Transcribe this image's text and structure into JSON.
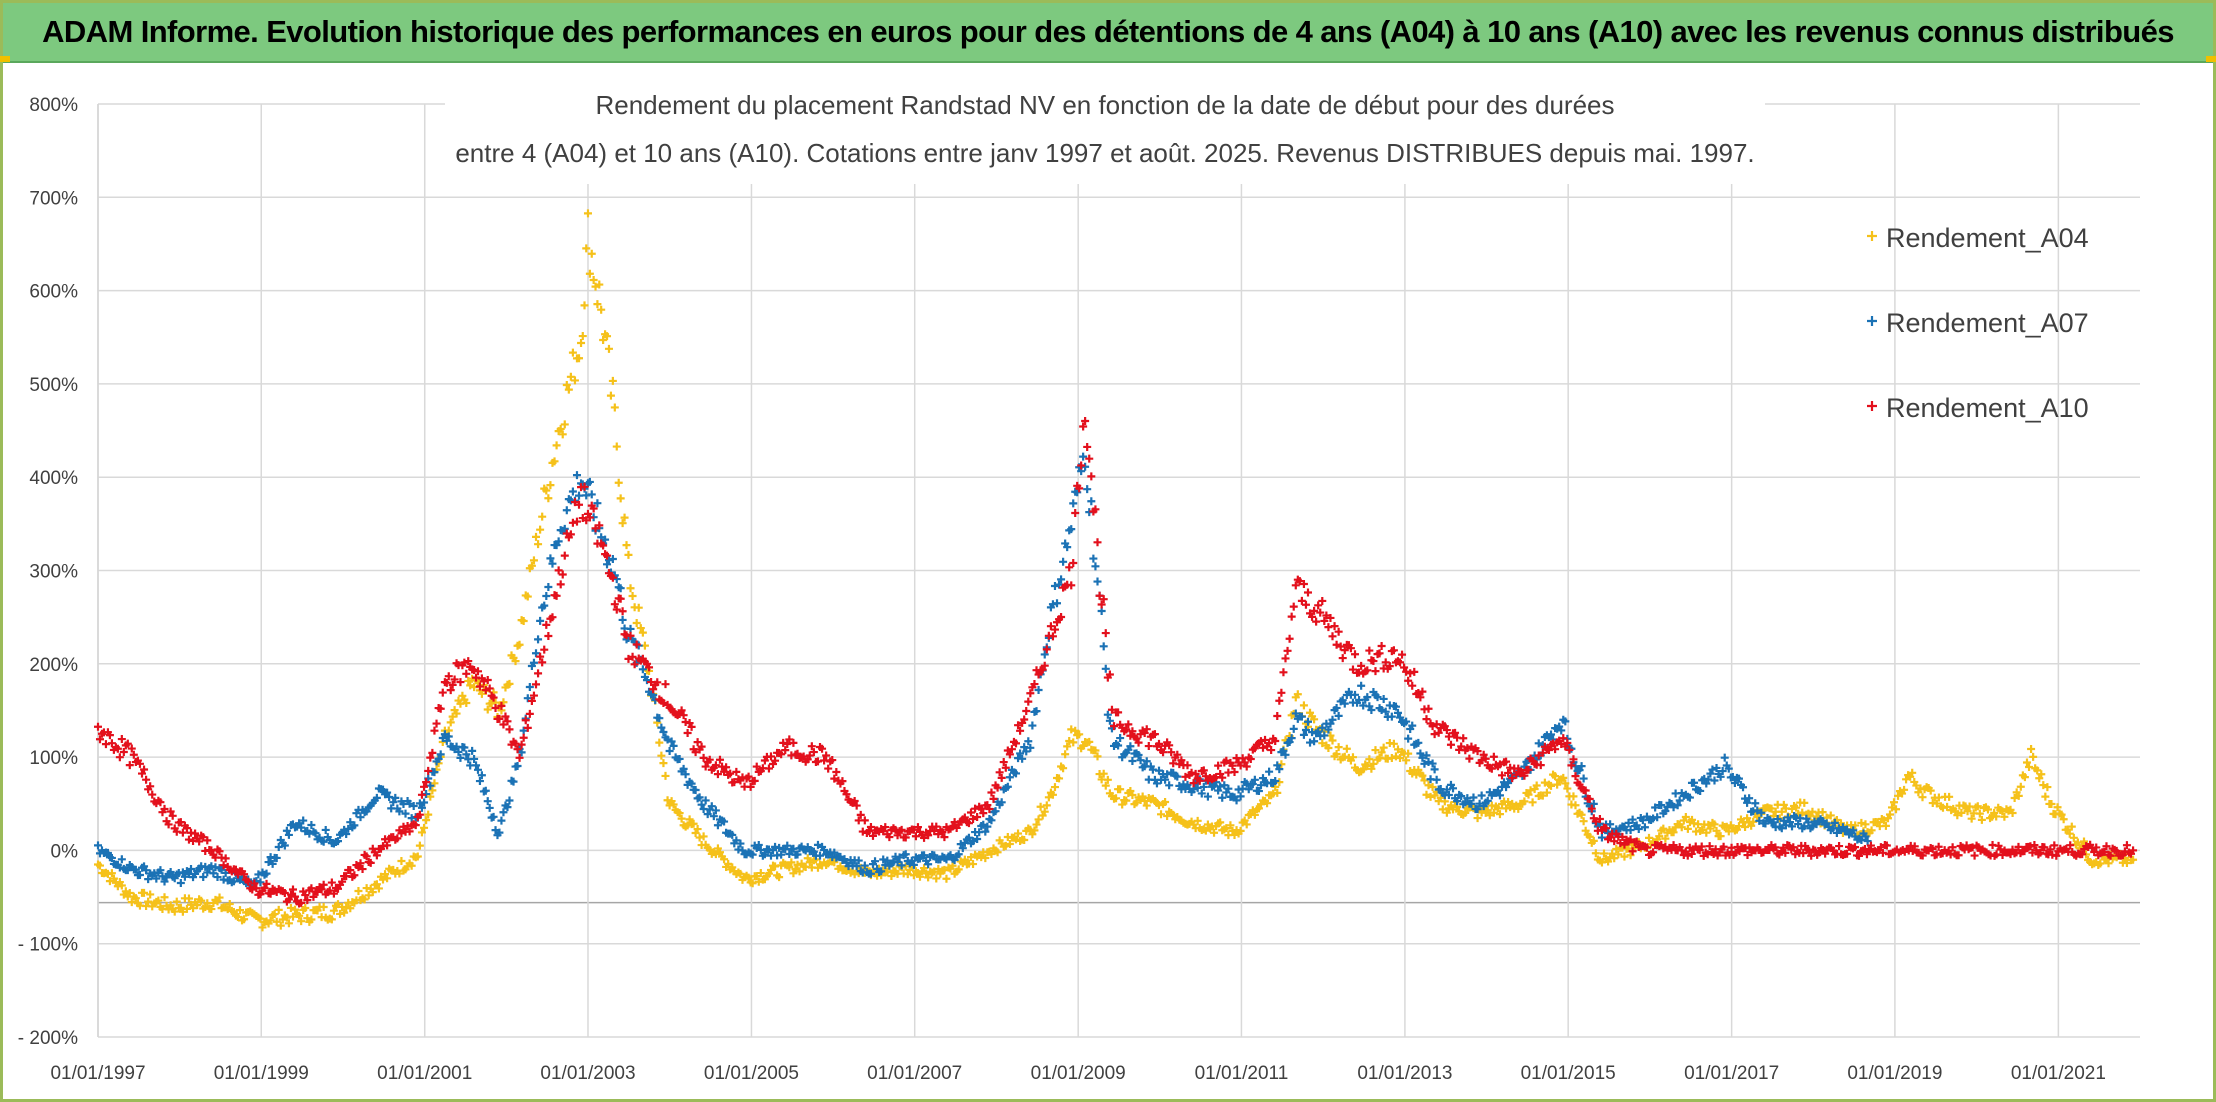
{
  "header": {
    "title": "ADAM Informe. Evolution historique des performances en euros pour des détentions de 4 ans (A04) à 10 ans (A10) avec les revenus connus distribués"
  },
  "chart_data": {
    "type": "scatter",
    "title_line1": "Rendement du placement Randstad NV en fonction de la date de début pour des durées",
    "title_line2": "entre 4 (A04) et 10 ans (A10). Cotations entre janv 1997 et août. 2025. Revenus DISTRIBUES depuis mai. 1997.",
    "x_axis": {
      "type": "date",
      "range": [
        "1997-01-01",
        "2022-01-01"
      ],
      "tick_labels": [
        "01/01/1997",
        "01/01/1999",
        "01/01/2001",
        "01/01/2003",
        "01/01/2005",
        "01/01/2007",
        "01/01/2009",
        "01/01/2011",
        "01/01/2013",
        "01/01/2015",
        "01/01/2017",
        "01/01/2019",
        "01/01/2021"
      ]
    },
    "y_axis": {
      "range": [
        -2.0,
        8.0
      ],
      "tick_labels": [
        "800%",
        "700%",
        "600%",
        "500%",
        "400%",
        "300%",
        "200%",
        "100%",
        "0%",
        "- 100%",
        "- 200%"
      ]
    },
    "grid": true,
    "legend_position": "top-right",
    "marker": "+",
    "series": [
      {
        "name": "Rendement_A04",
        "color": "#f5c11a",
        "points": [
          [
            "1997-01-01",
            -0.15
          ],
          [
            "1997-06-01",
            -0.5
          ],
          [
            "1997-12-01",
            -0.6
          ],
          [
            "1998-06-01",
            -0.55
          ],
          [
            "1998-12-01",
            -0.75
          ],
          [
            "1999-06-01",
            -0.7
          ],
          [
            "1999-12-01",
            -0.65
          ],
          [
            "2000-06-01",
            -0.35
          ],
          [
            "2000-12-01",
            -0.05
          ],
          [
            "2001-04-01",
            1.2
          ],
          [
            "2001-08-01",
            1.8
          ],
          [
            "2001-12-01",
            1.5
          ],
          [
            "2002-03-01",
            2.3
          ],
          [
            "2002-06-01",
            3.5
          ],
          [
            "2002-09-01",
            4.6
          ],
          [
            "2002-12-01",
            5.5
          ],
          [
            "2003-01-01",
            6.6
          ],
          [
            "2003-03-01",
            5.8
          ],
          [
            "2003-05-01",
            4.6
          ],
          [
            "2003-07-01",
            3.0
          ],
          [
            "2003-10-01",
            1.9
          ],
          [
            "2004-01-01",
            0.5
          ],
          [
            "2004-06-01",
            0.1
          ],
          [
            "2004-12-01",
            -0.3
          ],
          [
            "2005-06-01",
            -0.2
          ],
          [
            "2005-12-01",
            -0.1
          ],
          [
            "2006-06-01",
            -0.25
          ],
          [
            "2006-12-01",
            -0.2
          ],
          [
            "2007-06-01",
            -0.25
          ],
          [
            "2007-12-01",
            0.0
          ],
          [
            "2008-06-01",
            0.2
          ],
          [
            "2008-09-01",
            0.6
          ],
          [
            "2008-12-01",
            1.2
          ],
          [
            "2009-02-01",
            1.2
          ],
          [
            "2009-06-01",
            0.6
          ],
          [
            "2009-12-01",
            0.5
          ],
          [
            "2010-06-01",
            0.3
          ],
          [
            "2010-12-01",
            0.2
          ],
          [
            "2011-06-01",
            0.6
          ],
          [
            "2011-09-01",
            1.6
          ],
          [
            "2011-12-01",
            1.3
          ],
          [
            "2012-06-01",
            0.9
          ],
          [
            "2012-12-01",
            1.1
          ],
          [
            "2013-06-01",
            0.5
          ],
          [
            "2013-12-01",
            0.4
          ],
          [
            "2014-06-01",
            0.5
          ],
          [
            "2014-12-01",
            0.8
          ],
          [
            "2015-06-01",
            -0.1
          ],
          [
            "2015-12-01",
            0.05
          ],
          [
            "2016-06-01",
            0.3
          ],
          [
            "2016-12-01",
            0.2
          ],
          [
            "2017-06-01",
            0.4
          ],
          [
            "2017-12-01",
            0.45
          ],
          [
            "2018-06-01",
            0.2
          ],
          [
            "2018-12-01",
            0.3
          ],
          [
            "2019-03-01",
            0.8
          ],
          [
            "2019-06-01",
            0.6
          ],
          [
            "2019-12-01",
            0.4
          ],
          [
            "2020-06-01",
            0.4
          ],
          [
            "2020-09-01",
            1.0
          ],
          [
            "2020-12-01",
            0.5
          ],
          [
            "2021-06-01",
            -0.1
          ],
          [
            "2021-12-01",
            -0.1
          ]
        ]
      },
      {
        "name": "Rendement_A07",
        "color": "#1b72b5",
        "points": [
          [
            "1997-01-01",
            0.0
          ],
          [
            "1997-06-01",
            -0.2
          ],
          [
            "1997-12-01",
            -0.3
          ],
          [
            "1998-06-01",
            -0.2
          ],
          [
            "1998-12-01",
            -0.4
          ],
          [
            "1999-06-01",
            0.3
          ],
          [
            "1999-12-01",
            0.1
          ],
          [
            "2000-06-01",
            0.6
          ],
          [
            "2000-12-01",
            0.4
          ],
          [
            "2001-04-01",
            1.2
          ],
          [
            "2001-08-01",
            1.0
          ],
          [
            "2001-12-01",
            0.2
          ],
          [
            "2002-03-01",
            1.0
          ],
          [
            "2002-06-01",
            2.5
          ],
          [
            "2002-09-01",
            3.5
          ],
          [
            "2002-12-01",
            4.0
          ],
          [
            "2003-01-01",
            3.8
          ],
          [
            "2003-03-01",
            3.4
          ],
          [
            "2003-05-01",
            3.0
          ],
          [
            "2003-07-01",
            2.3
          ],
          [
            "2003-10-01",
            1.8
          ],
          [
            "2004-01-01",
            1.1
          ],
          [
            "2004-06-01",
            0.5
          ],
          [
            "2004-12-01",
            0.0
          ],
          [
            "2005-06-01",
            0.0
          ],
          [
            "2005-12-01",
            0.0
          ],
          [
            "2006-06-01",
            -0.2
          ],
          [
            "2006-12-01",
            -0.1
          ],
          [
            "2007-06-01",
            -0.1
          ],
          [
            "2007-12-01",
            0.3
          ],
          [
            "2008-06-01",
            1.2
          ],
          [
            "2008-09-01",
            2.5
          ],
          [
            "2008-12-01",
            3.5
          ],
          [
            "2009-02-01",
            4.3
          ],
          [
            "2009-06-01",
            1.2
          ],
          [
            "2009-12-01",
            0.8
          ],
          [
            "2010-06-01",
            0.7
          ],
          [
            "2010-12-01",
            0.6
          ],
          [
            "2011-06-01",
            0.8
          ],
          [
            "2011-09-01",
            1.4
          ],
          [
            "2011-12-01",
            1.2
          ],
          [
            "2012-06-01",
            1.7
          ],
          [
            "2012-12-01",
            1.5
          ],
          [
            "2013-06-01",
            0.7
          ],
          [
            "2013-12-01",
            0.5
          ],
          [
            "2014-06-01",
            0.8
          ],
          [
            "2014-12-01",
            1.4
          ],
          [
            "2015-06-01",
            0.2
          ],
          [
            "2015-12-01",
            0.3
          ],
          [
            "2016-06-01",
            0.6
          ],
          [
            "2016-12-01",
            0.9
          ],
          [
            "2017-06-01",
            0.3
          ],
          [
            "2017-12-01",
            0.3
          ],
          [
            "2018-06-01",
            0.2
          ],
          [
            "2018-09-01",
            0.1
          ]
        ]
      },
      {
        "name": "Rendement_A10",
        "color": "#e3101c",
        "points": [
          [
            "1997-01-01",
            1.3
          ],
          [
            "1997-06-01",
            1.0
          ],
          [
            "1997-12-01",
            0.3
          ],
          [
            "1998-06-01",
            0.0
          ],
          [
            "1998-12-01",
            -0.4
          ],
          [
            "1999-06-01",
            -0.5
          ],
          [
            "1999-12-01",
            -0.4
          ],
          [
            "2000-06-01",
            0.0
          ],
          [
            "2000-12-01",
            0.3
          ],
          [
            "2001-04-01",
            1.8
          ],
          [
            "2001-08-01",
            2.0
          ],
          [
            "2001-12-01",
            1.5
          ],
          [
            "2002-03-01",
            1.0
          ],
          [
            "2002-06-01",
            2.0
          ],
          [
            "2002-09-01",
            3.0
          ],
          [
            "2002-12-01",
            3.8
          ],
          [
            "2003-01-01",
            3.6
          ],
          [
            "2003-03-01",
            3.3
          ],
          [
            "2003-05-01",
            2.8
          ],
          [
            "2003-07-01",
            2.2
          ],
          [
            "2003-10-01",
            1.9
          ],
          [
            "2004-01-01",
            1.6
          ],
          [
            "2004-06-01",
            1.0
          ],
          [
            "2004-12-01",
            0.7
          ],
          [
            "2005-06-01",
            1.1
          ],
          [
            "2005-12-01",
            1.0
          ],
          [
            "2006-06-01",
            0.2
          ],
          [
            "2006-12-01",
            0.2
          ],
          [
            "2007-06-01",
            0.2
          ],
          [
            "2007-12-01",
            0.5
          ],
          [
            "2008-06-01",
            1.6
          ],
          [
            "2008-09-01",
            2.3
          ],
          [
            "2008-12-01",
            3.0
          ],
          [
            "2009-02-01",
            4.8
          ],
          [
            "2009-06-01",
            1.4
          ],
          [
            "2009-12-01",
            1.2
          ],
          [
            "2010-06-01",
            0.8
          ],
          [
            "2010-12-01",
            0.9
          ],
          [
            "2011-06-01",
            1.2
          ],
          [
            "2011-09-01",
            2.8
          ],
          [
            "2011-12-01",
            2.6
          ],
          [
            "2012-06-01",
            2.0
          ],
          [
            "2012-12-01",
            2.1
          ],
          [
            "2013-06-01",
            1.3
          ],
          [
            "2013-12-01",
            1.0
          ],
          [
            "2014-06-01",
            0.8
          ],
          [
            "2014-12-01",
            1.2
          ],
          [
            "2015-06-01",
            0.2
          ],
          [
            "2015-12-01",
            0.0
          ],
          [
            "2016-06-01",
            0.0
          ],
          [
            "2017-06-01",
            0.0
          ],
          [
            "2018-06-01",
            0.0
          ],
          [
            "2019-06-01",
            0.0
          ],
          [
            "2020-06-01",
            0.0
          ],
          [
            "2021-06-01",
            0.0
          ],
          [
            "2021-12-01",
            0.0
          ]
        ]
      }
    ]
  }
}
